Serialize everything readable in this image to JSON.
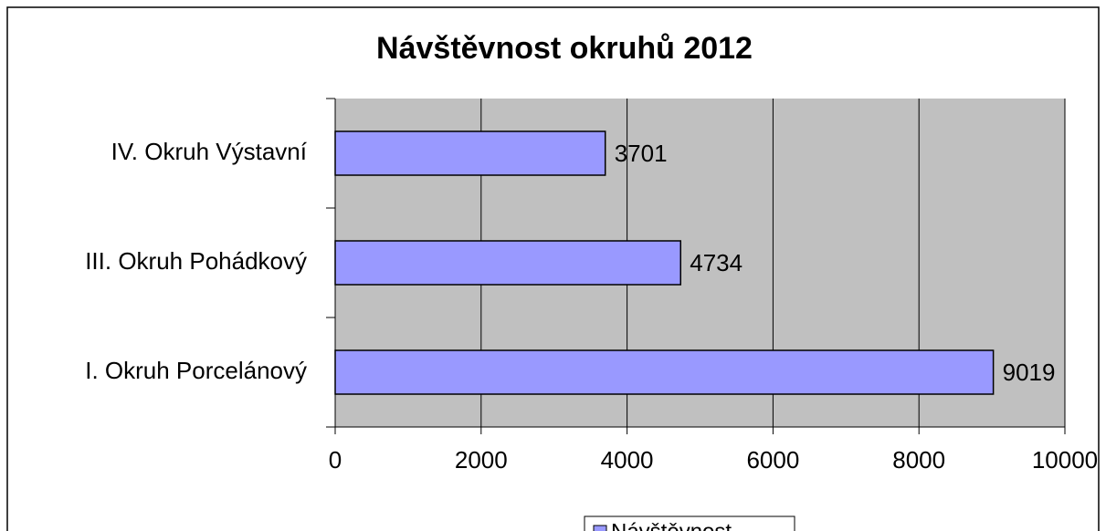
{
  "chart_data": {
    "type": "bar",
    "orientation": "horizontal",
    "title": "Návštěvnost okruhů 2012",
    "categories": [
      "IV. Okruh Výstavní",
      "III. Okruh Pohádkový",
      "I. Okruh Porcelánový"
    ],
    "series": [
      {
        "name": "Návštěvnost",
        "color": "#9999ff",
        "values": [
          3701,
          4734,
          9019
        ]
      }
    ],
    "xlim": [
      0,
      10000
    ],
    "xticks": [
      0,
      2000,
      4000,
      6000,
      8000,
      10000
    ],
    "grid": true,
    "legend": "bottom"
  }
}
